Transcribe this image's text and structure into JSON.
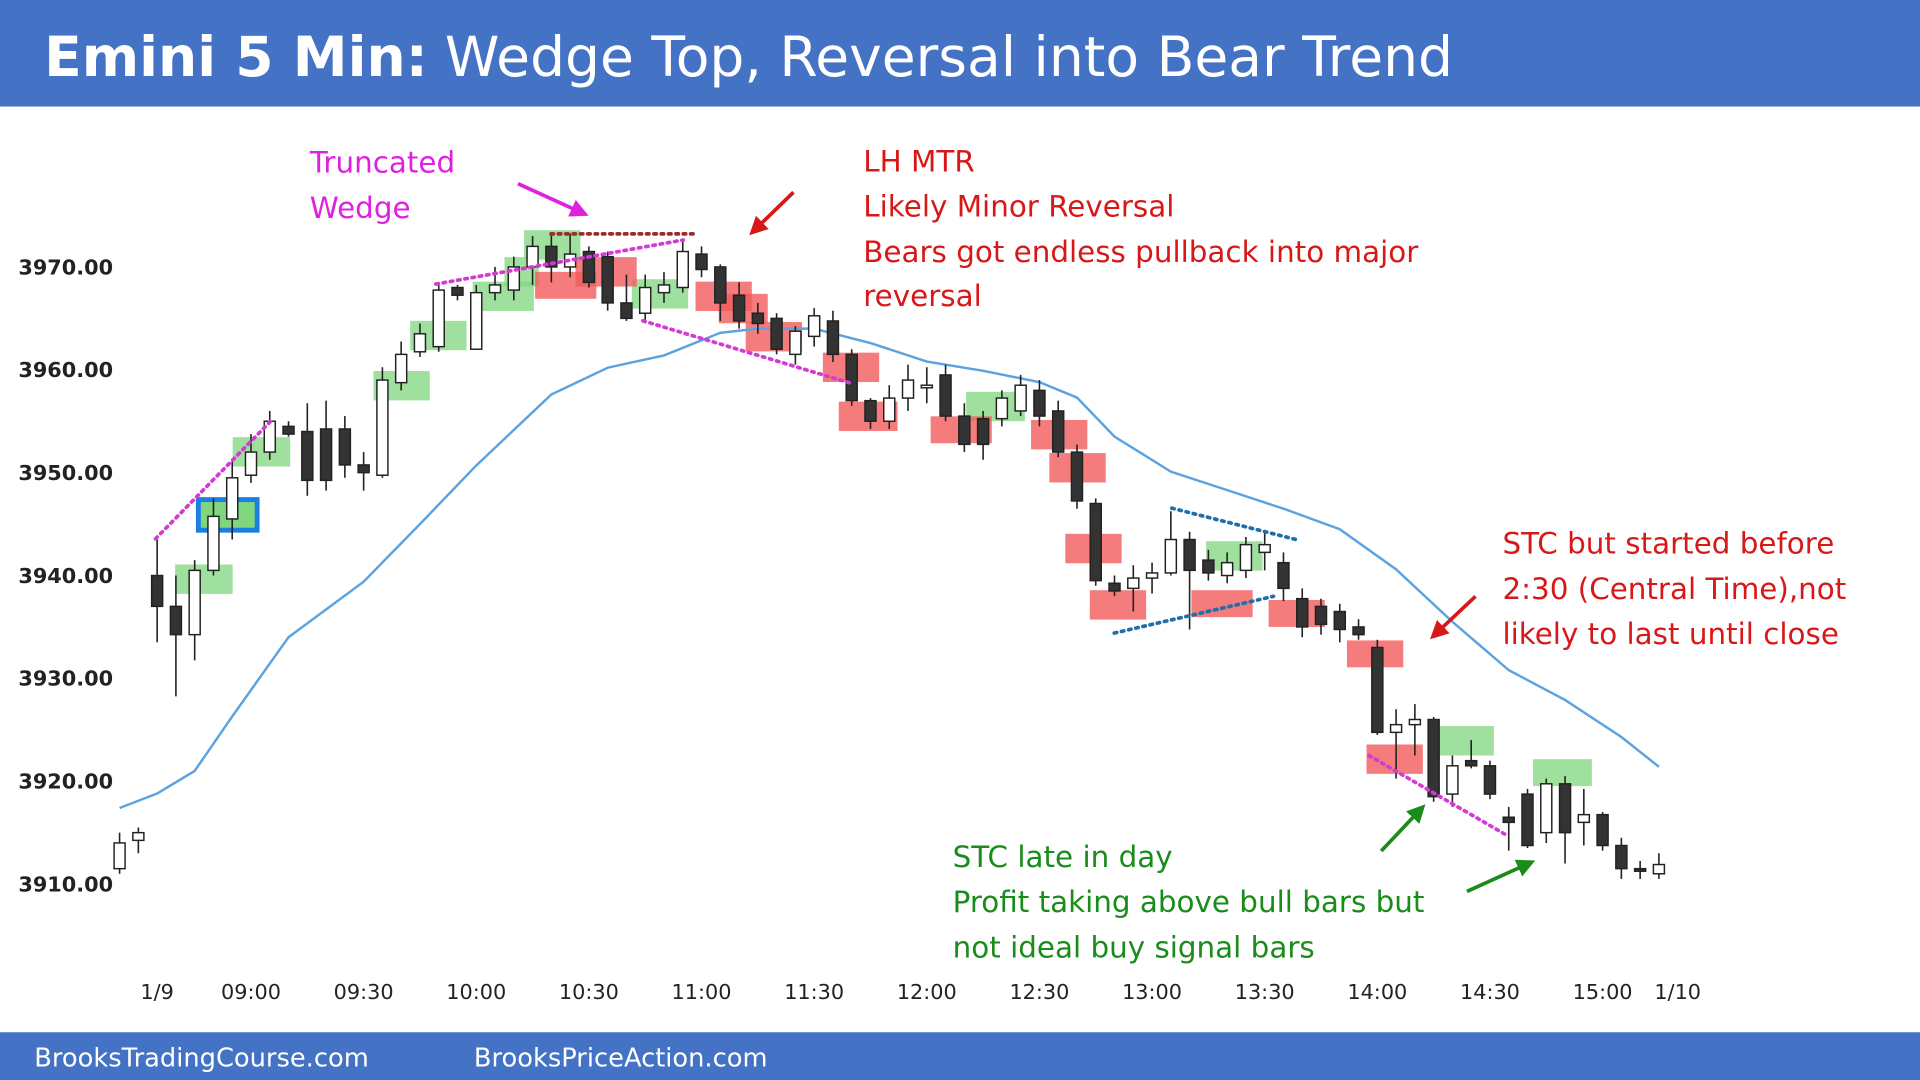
{
  "header": {
    "title_bold": "Emini 5 Min:",
    "title_rest": "Wedge Top, Reversal into Bear Trend"
  },
  "footer": {
    "left": "BrooksTradingCourse.com",
    "right": "BrooksPriceAction.com"
  },
  "annotations": {
    "wedge": [
      "Truncated",
      "Wedge"
    ],
    "mtr": [
      "LH MTR",
      "Likely Minor Reversal",
      "Bears got endless pullback into major",
      "reversal"
    ],
    "stc": [
      "STC but started before",
      "2:30 (Central Time),not",
      "likely to last until close"
    ],
    "late": [
      "STC late in day",
      "Profit taking above bull bars but",
      "not ideal buy signal bars"
    ]
  },
  "chart_data": {
    "type": "candlestick",
    "xlim": [
      -0.5,
      84.95
    ],
    "xticks": [
      {
        "value": 2,
        "label": "1/9"
      },
      {
        "value": 7,
        "label": "09:00"
      },
      {
        "value": 13,
        "label": "09:30"
      },
      {
        "value": 19,
        "label": "10:00"
      },
      {
        "value": 25,
        "label": "10:30"
      },
      {
        "value": 31,
        "label": "11:00"
      },
      {
        "value": 37,
        "label": "11:30"
      },
      {
        "value": 43,
        "label": "12:00"
      },
      {
        "value": 49,
        "label": "12:30"
      },
      {
        "value": 55,
        "label": "13:00"
      },
      {
        "value": 61,
        "label": "13:30"
      },
      {
        "value": 67,
        "label": "14:00"
      },
      {
        "value": 73,
        "label": "14:30"
      },
      {
        "value": 79,
        "label": "15:00"
      },
      {
        "value": 83,
        "label": "1/10"
      }
    ],
    "ylim": [
      3902,
      3984
    ],
    "yticks": [
      {
        "value": 3910,
        "label": "3910.00"
      },
      {
        "value": 3920,
        "label": "3920.00"
      },
      {
        "value": 3930,
        "label": "3930.00"
      },
      {
        "value": 3940,
        "label": "3940.00"
      },
      {
        "value": 3950,
        "label": "3950.00"
      },
      {
        "value": 3960,
        "label": "3960.00"
      },
      {
        "value": 3970,
        "label": "3970.00"
      }
    ],
    "bull_color": "#ffffff",
    "bear_color": "#333333",
    "open": [
      3911.5,
      3914.25,
      3940,
      3937,
      3934.25,
      3940.5,
      3945.5,
      3949.75,
      3952,
      3954.5,
      3954,
      3954.25,
      3954.25,
      3950.75,
      3949.75,
      3958.75,
      3961.75,
      3962.25,
      3968,
      3962,
      3967.5,
      3967.75,
      3970,
      3972,
      3970,
      3971.5,
      3971,
      3966.5,
      3965.5,
      3967.5,
      3968,
      3971.25,
      3970,
      3967.25,
      3965.5,
      3965,
      3961.5,
      3963.25,
      3964.75,
      3961.5,
      3957,
      3955,
      3957.25,
      3958.25,
      3959.5,
      3955.5,
      3955.25,
      3955.25,
      3956,
      3958,
      3956,
      3952,
      3947,
      3939.25,
      3938.75,
      3939.75,
      3940.25,
      3943.5,
      3941.5,
      3940,
      3940.5,
      3942.25,
      3941.25,
      3937.75,
      3937,
      3936.5,
      3935,
      3933,
      3924.75,
      3925.5,
      3926,
      3918.75,
      3922,
      3921.5,
      3916.5,
      3918.75,
      3915,
      3919.75,
      3916,
      3916.75,
      3913.75,
      3911.5,
      3911
    ],
    "high": [
      3915,
      3915.5,
      3943.5,
      3940,
      3941.5,
      3947.5,
      3951.25,
      3953.75,
      3956,
      3955,
      3956.75,
      3957,
      3955.5,
      3952,
      3960.25,
      3962.75,
      3964.5,
      3968.5,
      3968.25,
      3968.25,
      3970,
      3971,
      3973,
      3973.25,
      3973.25,
      3972,
      3971.5,
      3969.25,
      3969.25,
      3969.5,
      3972.75,
      3972,
      3970.25,
      3968.5,
      3966.5,
      3965.5,
      3964.25,
      3966,
      3965.75,
      3962,
      3957.25,
      3958.5,
      3960.5,
      3960.25,
      3960.5,
      3956.75,
      3956,
      3958,
      3959.5,
      3959,
      3957,
      3952.75,
      3947.5,
      3940,
      3941,
      3941.25,
      3946.25,
      3944.25,
      3942.5,
      3942.25,
      3943.75,
      3944.25,
      3942.25,
      3938.75,
      3937.75,
      3937.25,
      3935.75,
      3933.75,
      3927,
      3927.5,
      3926.25,
      3922.5,
      3924,
      3922,
      3917.5,
      3919.25,
      3920.25,
      3920.5,
      3919.25,
      3917,
      3914.5,
      3912.25,
      3913
    ],
    "low": [
      3911,
      3913,
      3933.5,
      3928.25,
      3931.75,
      3940,
      3943.5,
      3949,
      3951.25,
      3953.5,
      3947.75,
      3948.25,
      3949.5,
      3948.25,
      3949.5,
      3958,
      3961.25,
      3961.75,
      3966.75,
      3962,
      3966.75,
      3966.75,
      3968.25,
      3968.5,
      3969,
      3968,
      3965.75,
      3964.75,
      3964.5,
      3966.5,
      3967.5,
      3969,
      3964.75,
      3964,
      3963.5,
      3961.5,
      3960.5,
      3962.25,
      3960.75,
      3956.5,
      3954.25,
      3954.25,
      3956,
      3956.75,
      3955,
      3952,
      3951.25,
      3954.5,
      3955.5,
      3954.5,
      3951.5,
      3946.5,
      3939,
      3938,
      3936.5,
      3938.25,
      3940,
      3934.75,
      3939.5,
      3939.25,
      3939.75,
      3940.5,
      3937.5,
      3934,
      3934.25,
      3933.5,
      3933.75,
      3924.5,
      3920.25,
      3922.5,
      3918,
      3917.5,
      3921.25,
      3918.25,
      3913.25,
      3913.5,
      3914,
      3912,
      3913.75,
      3913.25,
      3910.5,
      3910.5,
      3910.5
    ],
    "close": [
      3914,
      3915,
      3937,
      3934.25,
      3940.5,
      3945.75,
      3949.5,
      3952,
      3955,
      3953.75,
      3949.25,
      3949.25,
      3950.75,
      3950,
      3959,
      3961.5,
      3963.5,
      3967.75,
      3967.25,
      3967.5,
      3968.25,
      3970,
      3972,
      3970,
      3971.25,
      3968.5,
      3966.5,
      3965,
      3968,
      3968.25,
      3971.5,
      3969.75,
      3966.5,
      3964.75,
      3964.5,
      3962,
      3963.75,
      3965.25,
      3961.5,
      3957,
      3955,
      3957.25,
      3959,
      3958.5,
      3955.5,
      3952.75,
      3952.75,
      3957.25,
      3958.5,
      3955.5,
      3952,
      3947.25,
      3939.5,
      3938.5,
      3939.75,
      3940.25,
      3943.5,
      3940.5,
      3940.25,
      3941.25,
      3943,
      3943,
      3938.75,
      3935,
      3935.25,
      3934.75,
      3934.25,
      3924.75,
      3925.5,
      3926,
      3918.5,
      3921.5,
      3921.5,
      3918.75,
      3916,
      3913.75,
      3919.75,
      3915,
      3916.75,
      3913.75,
      3911.5,
      3911.25,
      3911.9
    ],
    "ema": {
      "color": "#5ba3e0",
      "x": [
        0,
        2,
        4,
        6,
        9,
        13,
        16,
        19,
        23,
        26,
        29,
        32,
        34,
        37,
        40,
        43,
        46,
        49,
        51,
        53,
        56,
        59,
        62,
        65,
        68,
        71,
        74,
        77,
        80,
        82
      ],
      "values": [
        3917.4,
        3918.8,
        3921,
        3926.3,
        3934,
        3939.4,
        3945,
        3950.7,
        3957.6,
        3960.2,
        3961.4,
        3963.6,
        3964,
        3964,
        3962.6,
        3960.8,
        3959.9,
        3958.8,
        3957.3,
        3953.5,
        3950.1,
        3948.3,
        3946.5,
        3944.5,
        3940.6,
        3935.5,
        3930.8,
        3927.9,
        3924.3,
        3921.4
      ]
    }
  }
}
